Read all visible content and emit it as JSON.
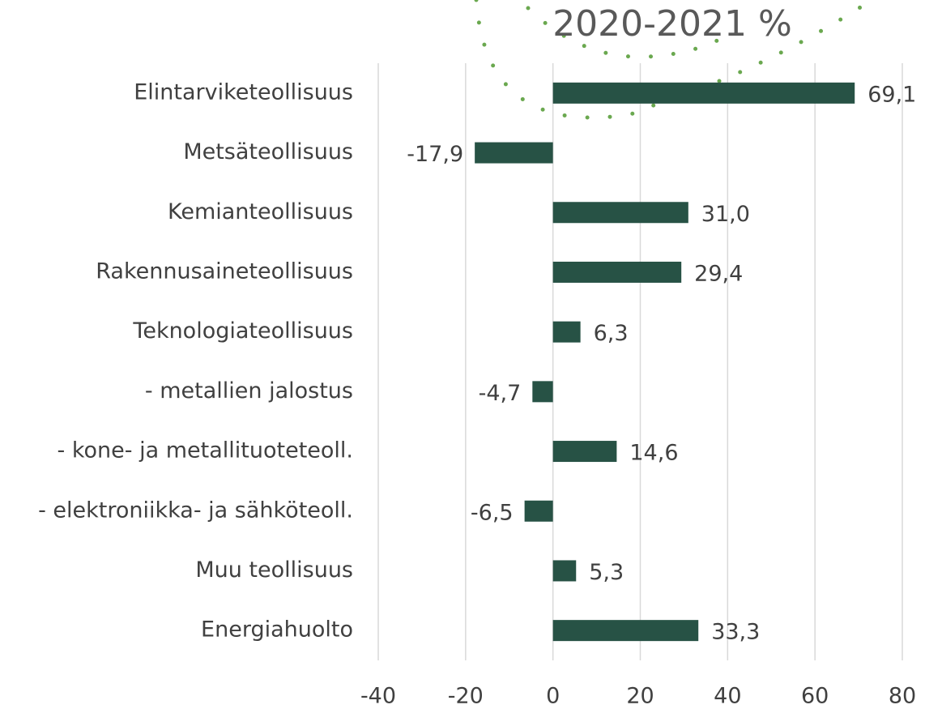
{
  "chart_data": {
    "type": "bar",
    "orientation": "horizontal",
    "title": "2020-2021 %",
    "categories": [
      "Elintarviketeollisuus",
      "Metsäteollisuus",
      "Kemianteollisuus",
      "Rakennusaineteollisuus",
      "Teknologiateollisuus",
      "- metallien jalostus",
      "- kone- ja metallituoteteoll.",
      "- elektroniikka- ja sähköteoll.",
      "Muu teollisuus",
      "Energiahuolto"
    ],
    "values": [
      69.1,
      -17.9,
      31.0,
      29.4,
      6.3,
      -4.7,
      14.6,
      -6.5,
      5.3,
      33.3
    ],
    "value_labels": [
      "69,1",
      "-17,9",
      "31,0",
      "29,4",
      "6,3",
      "-4,7",
      "14,6",
      "-6,5",
      "5,3",
      "33,3"
    ],
    "color": "#275245",
    "xlim": [
      -40,
      80
    ],
    "xticks": [
      -40,
      -20,
      0,
      20,
      40,
      60,
      80
    ],
    "grid": true
  }
}
